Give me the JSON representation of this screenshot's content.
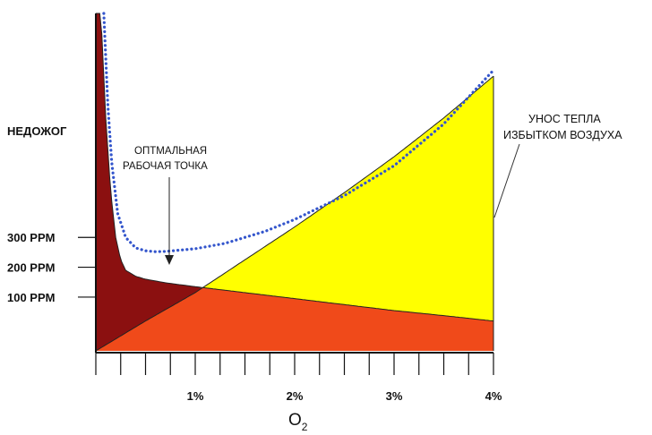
{
  "chart_data": {
    "type": "area",
    "xlabel": "O",
    "xlabel_sub": "2",
    "x_ticks": [
      {
        "value": 1,
        "label": "1%"
      },
      {
        "value": 2,
        "label": "2%"
      },
      {
        "value": 3,
        "label": "3%"
      },
      {
        "value": 4,
        "label": "4%"
      }
    ],
    "xlim": [
      0,
      4
    ],
    "y_ticks": [
      {
        "value": 100,
        "label": "100 PPM"
      },
      {
        "value": 200,
        "label": "200 PPM"
      },
      {
        "value": 300,
        "label": "300 PPM"
      }
    ],
    "ylim": [
      -80,
      1050
    ],
    "left_label": "НЕДОЖОГ",
    "annotations": {
      "optimum": [
        "ОПТМАЛЬНАЯ",
        "РАБОЧАЯ ТОЧКА"
      ],
      "heat_loss": [
        "УНОС ТЕПЛА",
        "ИЗБЫТКОМ ВОЗДУХА"
      ]
    },
    "series": [
      {
        "role": "incomplete-combustion",
        "color": "#8b1010",
        "x": [
          0.05,
          0.1,
          0.15,
          0.2,
          0.25,
          0.3,
          0.4,
          0.5,
          0.7,
          1.0,
          1.5,
          2.0,
          2.5,
          3.0,
          3.5,
          4.0
        ],
        "y": [
          1050,
          700,
          450,
          300,
          225,
          190,
          170,
          160,
          148,
          135,
          115,
          95,
          75,
          55,
          38,
          20
        ]
      },
      {
        "role": "excess-air-heat-loss",
        "color": "#ffff00",
        "x": [
          0,
          0.5,
          1.0,
          1.5,
          2.0,
          2.5,
          3.0,
          3.5,
          4.0
        ],
        "y": [
          -80,
          20,
          115,
          225,
          335,
          450,
          570,
          700,
          840
        ]
      },
      {
        "role": "total-loss",
        "color": "#3355cc",
        "style": "dotted",
        "x": [
          0.08,
          0.12,
          0.16,
          0.22,
          0.3,
          0.4,
          0.5,
          0.6,
          0.7,
          0.8,
          1.0,
          1.3,
          1.7,
          2.0,
          2.5,
          3.0,
          3.5,
          4.0
        ],
        "y": [
          1050,
          750,
          550,
          380,
          300,
          265,
          255,
          252,
          253,
          256,
          262,
          280,
          320,
          360,
          440,
          540,
          680,
          860
        ]
      }
    ],
    "fill_colors": {
      "red_area": "#8b1010",
      "orange_area": "#f04a1a",
      "yellow_area": "#ffff00"
    }
  }
}
